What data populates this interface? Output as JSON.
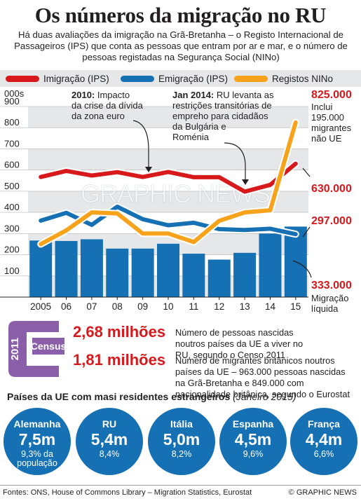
{
  "header": {
    "title": "Os números da migração no RU",
    "subtitle": "Há duas avaliações da imigração na Grã-Bretanha – o Registo Internacional de Passageiros (IPS) que conta as pessoas que entram por ar e mar, e o número de pessoas registadas na Segurança Social (NINo)"
  },
  "legend": [
    {
      "label": "Imigração (IPS)",
      "color": "#d7191c"
    },
    {
      "label": "Emigração (IPS)",
      "color": "#1670b4"
    },
    {
      "label": "Registos NINo",
      "color": "#f7a21b"
    }
  ],
  "chart_data": {
    "type": "line",
    "x": [
      "2005",
      "06",
      "07",
      "08",
      "09",
      "10",
      "11",
      "12",
      "13",
      "14",
      "15"
    ],
    "ylabel": "000s",
    "yticks": [
      100,
      200,
      300,
      400,
      500,
      600,
      700,
      800,
      900
    ],
    "ylim": [
      0,
      900
    ],
    "series": [
      {
        "name": "Imigração (IPS)",
        "type": "line",
        "color": "#d7191c",
        "values": [
          567,
          596,
          574,
          590,
          567,
          591,
          566,
          566,
          498,
          530,
          630
        ]
      },
      {
        "name": "Emigração (IPS)",
        "type": "line",
        "color": "#1670b4",
        "values": [
          361,
          398,
          341,
          427,
          368,
          339,
          351,
          321,
          317,
          323,
          297
        ]
      },
      {
        "name": "Registos NINo",
        "type": "line",
        "color": "#f7a21b",
        "values": [
          250,
          315,
          400,
          395,
          300,
          300,
          260,
          360,
          400,
          410,
          825
        ]
      },
      {
        "name": "Migração líquida",
        "type": "bar",
        "color": "#1670b4",
        "values": [
          267,
          265,
          273,
          229,
          229,
          252,
          205,
          177,
          209,
          300,
          333
        ]
      }
    ],
    "annotations": [
      {
        "lines": [
          "2010: Impacto",
          "da crise da dívida",
          "da zona euro"
        ]
      },
      {
        "lines": [
          "Jan 2014: RU levanta as",
          "restrições transitórias de",
          "empreho para cidadãos",
          "da Bulgária e",
          "Roménia"
        ]
      },
      {
        "value": "825.000",
        "lines": [
          "Inclui",
          "195.000",
          "migrantes",
          "não UE"
        ]
      },
      {
        "value": "630.000"
      },
      {
        "value": "297.000"
      },
      {
        "value": "333.000",
        "lines": [
          "Migração",
          "líquida"
        ]
      }
    ],
    "watermark": "GRAPHIC NEWS"
  },
  "census": {
    "year": "2011",
    "label": "Census"
  },
  "stats": [
    {
      "value": "2,68 milhões",
      "text": "Número de pessoas nascidas noutros países da UE a viver no RU, segundo o Censo 2011"
    },
    {
      "value": "1,81 milhões",
      "text": "Número de migrantes britânicos noutros países da UE – 963.000 pessoas nascidas na Grã-Bretanha e 849.000 com nacionalidade britânica, segundo o Eurostat"
    }
  ],
  "countries": {
    "title": "Países da UE com masi residentes estrangeiros",
    "date": "(Janeiro 2015)",
    "items": [
      {
        "name": "Alemanha",
        "pop": "7,5m",
        "pct": "9,3% da população"
      },
      {
        "name": "RU",
        "pop": "5,4m",
        "pct": "8,4%"
      },
      {
        "name": "Itália",
        "pop": "5,0m",
        "pct": "8,2%"
      },
      {
        "name": "Espanha",
        "pop": "4,5m",
        "pct": "9,6%"
      },
      {
        "name": "França",
        "pop": "4,4m",
        "pct": "6,6%"
      }
    ]
  },
  "footer": {
    "source": "Fontes: ONS, House of Commons Library – Migration Statistics, Eurostat",
    "credit": "© GRAPHIC NEWS"
  }
}
